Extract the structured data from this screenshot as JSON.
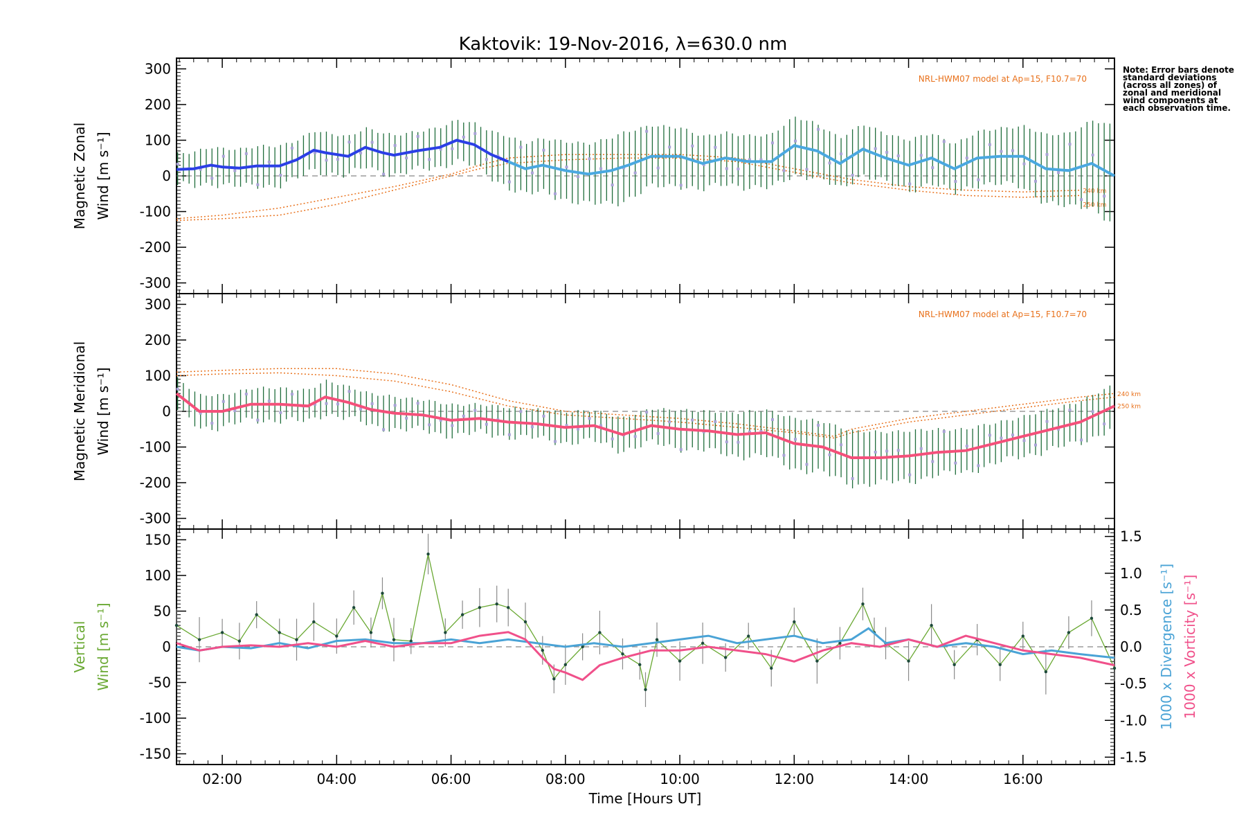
{
  "title": "Kaktovik: 19-Nov-2016, λ=630.0 nm",
  "note": "Note: Error bars denote standard deviations (across all zones) of zonal and meridional wind components at each observation time.",
  "xlabel": "Time [Hours UT]",
  "colors": {
    "zonal_mean": "#2b3fe6",
    "zonal_mean_late": "#4aa8e0",
    "meridional_mean": "#f4507a",
    "error_bar": "#1f6d3b",
    "zone_points": "#a9a3d6",
    "model": "#e8701a",
    "vertical": "#69a832",
    "divergence": "#4aa3d6",
    "vorticity": "#f0508a"
  },
  "chart_data": [
    {
      "type": "line",
      "panel": "zonal",
      "ylabel": [
        "Magnetic Zonal",
        "Wind [m s⁻¹]"
      ],
      "ylim": [
        -330,
        330
      ],
      "yticks": [
        300,
        200,
        100,
        0,
        -100,
        -200,
        -300
      ],
      "xlim": [
        1.2,
        17.6
      ],
      "xticks": [
        "02:00",
        "04:00",
        "06:00",
        "08:00",
        "10:00",
        "12:00",
        "14:00",
        "16:00"
      ],
      "xtick_values": [
        2,
        4,
        6,
        8,
        10,
        12,
        14,
        16
      ],
      "annotation": "NRL-HWM07 model at Ap=15, F10.7=70",
      "mean_wind": {
        "x": [
          1.2,
          1.5,
          1.8,
          2.0,
          2.3,
          2.6,
          3.0,
          3.3,
          3.6,
          3.8,
          4.2,
          4.5,
          4.8,
          5.0,
          5.4,
          5.8,
          6.1,
          6.4,
          6.7,
          7.0,
          7.3,
          7.6,
          8.0,
          8.4,
          8.8,
          9.1,
          9.5,
          10.0,
          10.4,
          10.8,
          11.2,
          11.6,
          12.0,
          12.4,
          12.8,
          13.2,
          13.6,
          14.0,
          14.4,
          14.8,
          15.2,
          15.6,
          16.0,
          16.4,
          16.8,
          17.2,
          17.6
        ],
        "y": [
          18,
          20,
          30,
          25,
          22,
          28,
          28,
          45,
          72,
          65,
          55,
          80,
          65,
          58,
          70,
          80,
          100,
          88,
          60,
          40,
          20,
          30,
          15,
          5,
          15,
          30,
          55,
          55,
          35,
          50,
          40,
          40,
          85,
          70,
          35,
          75,
          50,
          30,
          50,
          20,
          50,
          55,
          55,
          20,
          15,
          35,
          0
        ]
      },
      "error_half_width": {
        "x": [
          1.2,
          2.5,
          4.0,
          6.0,
          7.0,
          8.0,
          9.0,
          10.0,
          11.0,
          12.0,
          13.0,
          14.0,
          15.0,
          16.0,
          17.0,
          17.6
        ],
        "y": [
          45,
          55,
          55,
          55,
          70,
          80,
          95,
          80,
          70,
          80,
          70,
          70,
          70,
          85,
          110,
          140
        ]
      },
      "model_curves": [
        {
          "x": [
            1.2,
            2.0,
            3.0,
            4.0,
            5.0,
            6.0,
            6.5,
            7.0,
            8.0,
            9.0,
            10.0,
            11.0,
            12.0,
            13.0,
            14.0,
            15.0,
            16.0,
            17.0
          ],
          "y": [
            -120,
            -110,
            -90,
            -60,
            -30,
            5,
            30,
            50,
            60,
            60,
            60,
            50,
            20,
            -10,
            -30,
            -40,
            -45,
            -40
          ]
        },
        {
          "x": [
            1.2,
            2.0,
            3.0,
            4.0,
            5.0,
            6.0,
            6.5,
            7.0,
            8.0,
            9.0,
            10.0,
            11.0,
            12.0,
            13.0,
            14.0,
            15.0,
            16.0,
            17.0
          ],
          "y": [
            -125,
            -120,
            -110,
            -80,
            -40,
            0,
            20,
            35,
            45,
            50,
            50,
            40,
            10,
            -20,
            -40,
            -55,
            -60,
            -55
          ]
        }
      ],
      "model_labels": [
        "240 km",
        "250 km"
      ]
    },
    {
      "type": "line",
      "panel": "meridional",
      "ylabel": [
        "Magnetic Meridional",
        "Wind [m s⁻¹]"
      ],
      "ylim": [
        -330,
        330
      ],
      "yticks": [
        300,
        200,
        100,
        0,
        -100,
        -200,
        -300
      ],
      "xlim": [
        1.2,
        17.6
      ],
      "annotation": "NRL-HWM07 model at Ap=15, F10.7=70",
      "mean_wind": {
        "x": [
          1.2,
          1.6,
          2.0,
          2.5,
          3.0,
          3.5,
          3.8,
          4.2,
          4.6,
          5.0,
          5.5,
          6.0,
          6.5,
          7.0,
          7.5,
          8.0,
          8.5,
          9.0,
          9.5,
          10.0,
          10.5,
          11.0,
          11.5,
          12.0,
          12.5,
          13.0,
          13.5,
          14.0,
          14.5,
          15.0,
          15.5,
          16.0,
          16.5,
          17.0,
          17.6
        ],
        "y": [
          50,
          0,
          0,
          20,
          20,
          15,
          40,
          25,
          5,
          -5,
          -10,
          -25,
          -20,
          -30,
          -35,
          -45,
          -40,
          -65,
          -40,
          -50,
          -55,
          -65,
          -60,
          -90,
          -100,
          -130,
          -130,
          -125,
          -115,
          -110,
          -90,
          -70,
          -50,
          -30,
          15
        ]
      },
      "error_half_width": {
        "x": [
          1.2,
          3.0,
          5.0,
          7.0,
          9.0,
          11.0,
          12.0,
          13.0,
          14.0,
          15.0,
          16.0,
          17.6
        ],
        "y": [
          45,
          45,
          45,
          40,
          45,
          60,
          70,
          75,
          70,
          60,
          55,
          60
        ]
      },
      "model_curves": [
        {
          "x": [
            1.2,
            2.0,
            3.0,
            4.0,
            5.0,
            6.0,
            7.0,
            8.0,
            9.0,
            10.0,
            11.0,
            12.0,
            12.7,
            13.0,
            14.0,
            15.0,
            16.0,
            17.0,
            17.6
          ],
          "y": [
            110,
            115,
            120,
            120,
            105,
            75,
            30,
            0,
            -10,
            -20,
            -35,
            -55,
            -70,
            -50,
            -20,
            0,
            20,
            40,
            50
          ]
        },
        {
          "x": [
            1.2,
            2.0,
            3.0,
            4.0,
            5.0,
            6.0,
            7.0,
            8.0,
            9.0,
            10.0,
            11.0,
            12.0,
            12.7,
            13.0,
            14.0,
            15.0,
            16.0,
            17.0,
            17.6
          ],
          "y": [
            100,
            105,
            108,
            100,
            85,
            55,
            15,
            -10,
            -20,
            -30,
            -45,
            -60,
            -75,
            -60,
            -30,
            -10,
            10,
            30,
            40
          ]
        }
      ],
      "model_labels": [
        "240 km",
        "250 km"
      ]
    },
    {
      "type": "line",
      "panel": "vertical",
      "ylabel": [
        "Vertical",
        "Wind [m s⁻¹]"
      ],
      "ylim": [
        -165,
        165
      ],
      "yticks": [
        150,
        100,
        50,
        0,
        -50,
        -100,
        -150
      ],
      "y2label_divergence": "1000 x Divergence [s⁻¹]",
      "y2label_vorticity": "1000 x Vorticity [s⁻¹]",
      "y2lim": [
        -1.6,
        1.6
      ],
      "y2ticks": [
        1.5,
        1.0,
        0.5,
        0.0,
        -0.5,
        -1.0,
        -1.5
      ],
      "xlim": [
        1.2,
        17.6
      ],
      "vertical_wind": {
        "x": [
          1.2,
          1.6,
          2.0,
          2.3,
          2.6,
          3.0,
          3.3,
          3.6,
          4.0,
          4.3,
          4.6,
          4.8,
          5.0,
          5.3,
          5.6,
          5.9,
          6.2,
          6.5,
          6.8,
          7.0,
          7.3,
          7.6,
          7.8,
          8.0,
          8.3,
          8.6,
          9.0,
          9.3,
          9.4,
          9.6,
          10.0,
          10.4,
          10.8,
          11.2,
          11.6,
          12.0,
          12.4,
          12.8,
          13.2,
          13.4,
          13.6,
          14.0,
          14.4,
          14.8,
          15.2,
          15.6,
          16.0,
          16.4,
          16.8,
          17.2,
          17.6
        ],
        "y": [
          30,
          10,
          20,
          8,
          45,
          20,
          10,
          35,
          15,
          55,
          20,
          75,
          10,
          8,
          130,
          20,
          45,
          55,
          60,
          55,
          35,
          -5,
          -45,
          -25,
          0,
          20,
          -10,
          -25,
          -60,
          10,
          -20,
          5,
          -15,
          15,
          -30,
          35,
          -20,
          5,
          60,
          20,
          5,
          -20,
          30,
          -25,
          10,
          -25,
          15,
          -35,
          20,
          40,
          -30
        ]
      },
      "divergence": {
        "x": [
          1.2,
          1.6,
          2.0,
          2.5,
          3.0,
          3.5,
          4.0,
          4.5,
          5.0,
          5.5,
          6.0,
          6.5,
          7.0,
          7.5,
          8.0,
          8.5,
          9.0,
          9.5,
          10.0,
          10.5,
          11.0,
          11.5,
          12.0,
          12.5,
          13.0,
          13.3,
          13.6,
          14.0,
          14.5,
          15.0,
          15.5,
          16.0,
          16.5,
          17.0,
          17.6
        ],
        "y": [
          0.0,
          -0.05,
          0.0,
          -0.02,
          0.05,
          -0.02,
          0.08,
          0.1,
          0.05,
          0.05,
          0.1,
          0.05,
          0.1,
          0.05,
          0.0,
          0.05,
          0.0,
          0.05,
          0.1,
          0.15,
          0.05,
          0.1,
          0.15,
          0.05,
          0.1,
          0.25,
          0.05,
          0.1,
          0.0,
          0.05,
          0.0,
          -0.1,
          -0.05,
          -0.1,
          -0.15
        ]
      },
      "vorticity": {
        "x": [
          1.2,
          1.6,
          2.0,
          2.5,
          3.0,
          3.5,
          4.0,
          4.5,
          5.0,
          5.5,
          6.0,
          6.5,
          7.0,
          7.3,
          7.6,
          7.8,
          8.0,
          8.3,
          8.6,
          9.0,
          9.5,
          10.0,
          10.5,
          11.0,
          11.5,
          12.0,
          12.5,
          13.0,
          13.5,
          14.0,
          14.5,
          15.0,
          15.5,
          16.0,
          16.5,
          17.0,
          17.6
        ],
        "y": [
          0.05,
          -0.05,
          0.0,
          0.02,
          0.0,
          0.05,
          0.0,
          0.08,
          0.0,
          0.05,
          0.05,
          0.15,
          0.2,
          0.1,
          -0.15,
          -0.3,
          -0.35,
          -0.45,
          -0.25,
          -0.15,
          -0.05,
          -0.05,
          0.0,
          -0.05,
          -0.1,
          -0.2,
          -0.05,
          0.05,
          0.0,
          0.1,
          0.0,
          0.15,
          0.05,
          -0.05,
          -0.1,
          -0.15,
          -0.25
        ]
      }
    }
  ]
}
